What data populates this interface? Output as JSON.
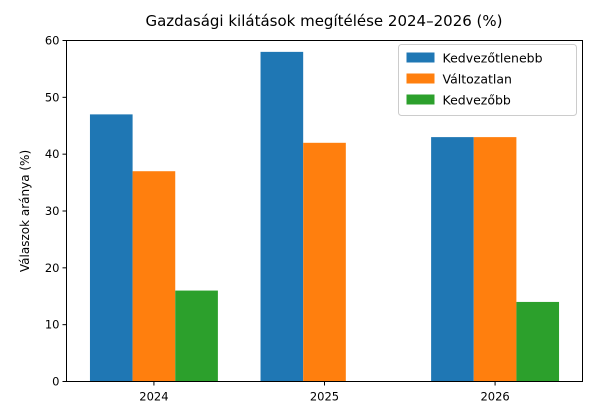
{
  "chart_data": {
    "type": "bar",
    "title": "Gazdasági kilátások megítélése 2024–2026 (%)",
    "xlabel": "",
    "ylabel": "Válaszok aránya (%)",
    "categories": [
      "2024",
      "2025",
      "2026"
    ],
    "ylim": [
      0,
      60
    ],
    "yticks": [
      0,
      10,
      20,
      30,
      40,
      50,
      60
    ],
    "grid": false,
    "legend_position": "top-right",
    "series": [
      {
        "name": "Kedvezőtlenebb",
        "color": "#1f77b4",
        "values": [
          47,
          58,
          43
        ]
      },
      {
        "name": "Változatlan",
        "color": "#ff7f0e",
        "values": [
          37,
          42,
          43
        ]
      },
      {
        "name": "Kedvezőbb",
        "color": "#2ca02c",
        "values": [
          16,
          0,
          14
        ]
      }
    ]
  }
}
